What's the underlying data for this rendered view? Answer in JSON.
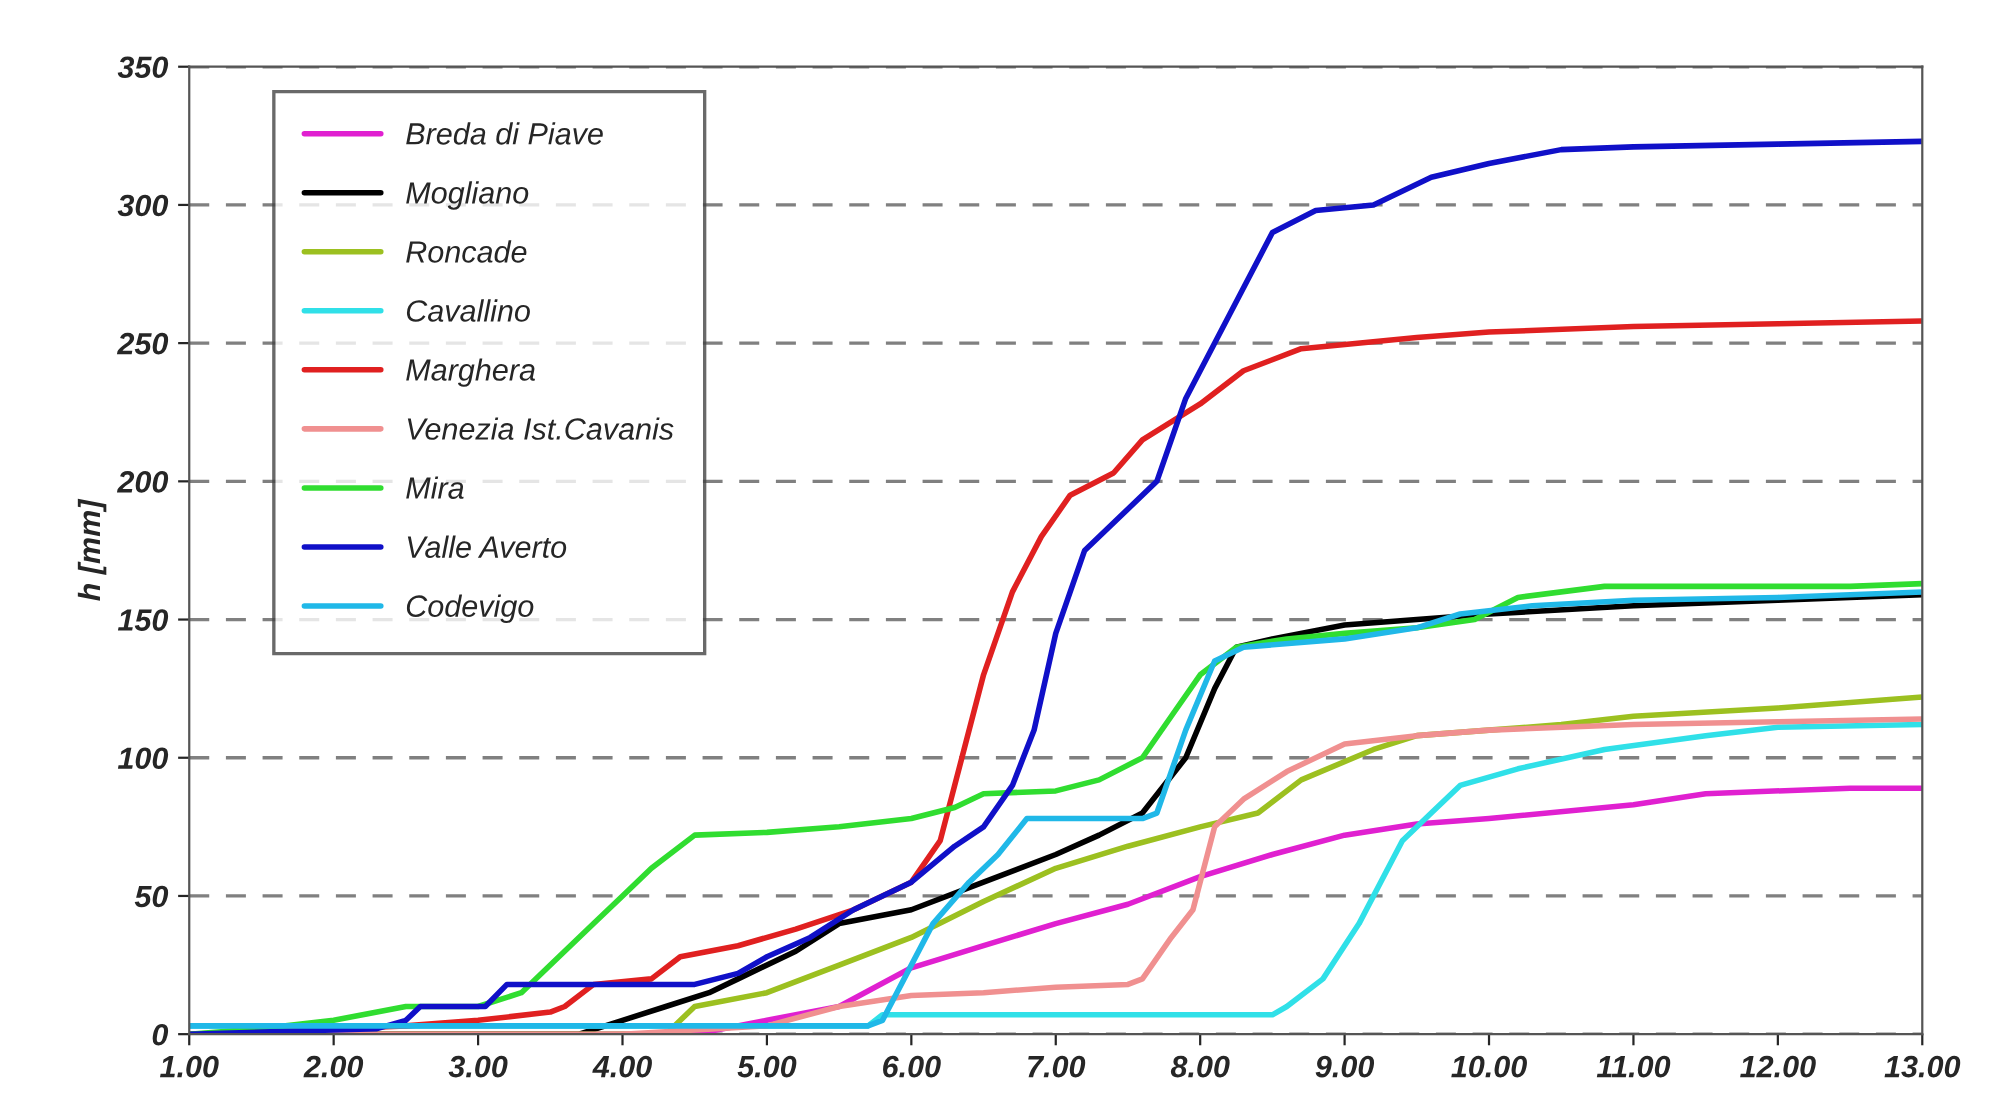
{
  "chart_data": {
    "type": "line",
    "ylabel": "h [mm]",
    "xlim": [
      1,
      13
    ],
    "xticks": [
      {
        "value": 1,
        "label": "1.00"
      },
      {
        "value": 2,
        "label": "2.00"
      },
      {
        "value": 3,
        "label": "3.00"
      },
      {
        "value": 4,
        "label": "4.00"
      },
      {
        "value": 5,
        "label": "5.00"
      },
      {
        "value": 6,
        "label": "6.00"
      },
      {
        "value": 7,
        "label": "7.00"
      },
      {
        "value": 8,
        "label": "8.00"
      },
      {
        "value": 9,
        "label": "9.00"
      },
      {
        "value": 10,
        "label": "10.00"
      },
      {
        "value": 11,
        "label": "11.00"
      },
      {
        "value": 12,
        "label": "12.00"
      },
      {
        "value": 13,
        "label": "13.00"
      }
    ],
    "ylim": [
      0,
      350
    ],
    "yticks": [
      0,
      50,
      100,
      150,
      200,
      250,
      300,
      350
    ],
    "grid": "y",
    "legend": "top left",
    "line_style": "solid",
    "series": [
      {
        "name": "Breda di Piave",
        "color": "#e020d0",
        "x": [
          1,
          4.5,
          5.0,
          5.5,
          6.0,
          6.5,
          7.0,
          7.5,
          8.0,
          8.5,
          9.0,
          9.5,
          10.0,
          11.0,
          11.5,
          12.5,
          13
        ],
        "values": [
          0,
          0,
          5,
          10,
          24,
          32,
          40,
          47,
          57,
          65,
          72,
          76,
          78,
          83,
          87,
          89,
          89
        ]
      },
      {
        "name": "Mogliano",
        "color": "#000000",
        "x": [
          1,
          3.7,
          4.0,
          4.3,
          4.6,
          4.8,
          5.2,
          5.5,
          5.8,
          6.0,
          6.5,
          7.0,
          7.3,
          7.6,
          7.9,
          8.1,
          8.25,
          8.5,
          9.0,
          9.5,
          10.0,
          11.0,
          12.0,
          13
        ],
        "values": [
          0,
          0,
          5,
          10,
          15,
          20,
          30,
          40,
          43,
          45,
          55,
          65,
          72,
          80,
          100,
          125,
          140,
          143,
          148,
          150,
          152,
          155,
          157,
          159
        ]
      },
      {
        "name": "Roncade",
        "color": "#9cc020",
        "x": [
          1,
          4.3,
          4.5,
          5.0,
          5.5,
          6.0,
          6.5,
          7.0,
          7.5,
          8.0,
          8.4,
          8.7,
          9.2,
          9.5,
          10.0,
          10.5,
          11.0,
          12.0,
          13
        ],
        "values": [
          0,
          0,
          10,
          15,
          25,
          35,
          48,
          60,
          68,
          75,
          80,
          92,
          103,
          108,
          110,
          112,
          115,
          118,
          122
        ]
      },
      {
        "name": "Cavallino",
        "color": "#30e0e8",
        "x": [
          1,
          5.7,
          5.8,
          8.5,
          8.6,
          8.85,
          9.1,
          9.4,
          9.6,
          9.8,
          10.2,
          10.8,
          11.5,
          12.0,
          13
        ],
        "values": [
          3,
          3,
          7,
          7,
          10,
          20,
          40,
          70,
          80,
          90,
          96,
          103,
          108,
          111,
          112
        ]
      },
      {
        "name": "Marghera",
        "color": "#e02020",
        "x": [
          1,
          2.5,
          3.0,
          3.5,
          3.6,
          3.8,
          4.2,
          4.4,
          4.8,
          5.2,
          5.6,
          6.0,
          6.2,
          6.35,
          6.5,
          6.7,
          6.9,
          7.1,
          7.4,
          7.6,
          8.0,
          8.3,
          8.7,
          9.5,
          10.0,
          11.0,
          12.0,
          13
        ],
        "values": [
          0,
          3,
          5,
          8,
          10,
          18,
          20,
          28,
          32,
          38,
          45,
          55,
          70,
          100,
          130,
          160,
          180,
          195,
          203,
          215,
          228,
          240,
          248,
          252,
          254,
          256,
          257,
          258
        ]
      },
      {
        "name": "Venezia Ist.Cavanis",
        "color": "#f09090",
        "x": [
          1,
          4.0,
          5.0,
          5.5,
          6.0,
          6.5,
          7.0,
          7.5,
          7.6,
          7.8,
          7.95,
          8.1,
          8.3,
          8.6,
          9.0,
          9.5,
          10.0,
          11.0,
          12.0,
          13
        ],
        "values": [
          0,
          0,
          3,
          10,
          14,
          15,
          17,
          18,
          20,
          35,
          45,
          75,
          85,
          95,
          105,
          108,
          110,
          112,
          113,
          114
        ]
      },
      {
        "name": "Mira",
        "color": "#30dd30",
        "x": [
          1,
          1.5,
          2.0,
          2.5,
          3.0,
          3.3,
          3.5,
          3.8,
          4.0,
          4.2,
          4.5,
          5.0,
          5.5,
          6.0,
          6.3,
          6.5,
          7.0,
          7.3,
          7.6,
          7.8,
          8.0,
          8.25,
          8.6,
          9.0,
          9.5,
          9.9,
          10.2,
          10.8,
          12.5,
          13
        ],
        "values": [
          0,
          2,
          5,
          10,
          10,
          15,
          25,
          40,
          50,
          60,
          72,
          73,
          75,
          78,
          82,
          87,
          88,
          92,
          100,
          115,
          130,
          140,
          143,
          145,
          147,
          150,
          158,
          162,
          162,
          163
        ]
      },
      {
        "name": "Valle Averto",
        "color": "#1010c8",
        "x": [
          1,
          2.3,
          2.5,
          2.6,
          3.05,
          3.2,
          4.5,
          4.8,
          5.0,
          5.3,
          5.6,
          6.0,
          6.3,
          6.5,
          6.7,
          6.85,
          7.0,
          7.2,
          7.5,
          7.7,
          7.9,
          8.2,
          8.5,
          8.8,
          9.2,
          9.6,
          10.0,
          10.5,
          11.0,
          12.0,
          13
        ],
        "values": [
          0,
          2,
          5,
          10,
          10,
          18,
          18,
          22,
          28,
          35,
          45,
          55,
          68,
          75,
          90,
          110,
          145,
          175,
          190,
          200,
          230,
          260,
          290,
          298,
          300,
          310,
          315,
          320,
          321,
          322,
          323
        ]
      },
      {
        "name": "Codevigo",
        "color": "#20b8e8",
        "x": [
          1,
          5.7,
          5.8,
          5.95,
          6.15,
          6.4,
          6.6,
          6.8,
          7.6,
          7.7,
          7.9,
          8.1,
          8.3,
          9.0,
          9.5,
          9.8,
          10.3,
          11.0,
          12.0,
          13
        ],
        "values": [
          3,
          3,
          5,
          20,
          40,
          55,
          65,
          78,
          78,
          80,
          110,
          135,
          140,
          143,
          147,
          152,
          155,
          157,
          158,
          160
        ]
      }
    ]
  }
}
